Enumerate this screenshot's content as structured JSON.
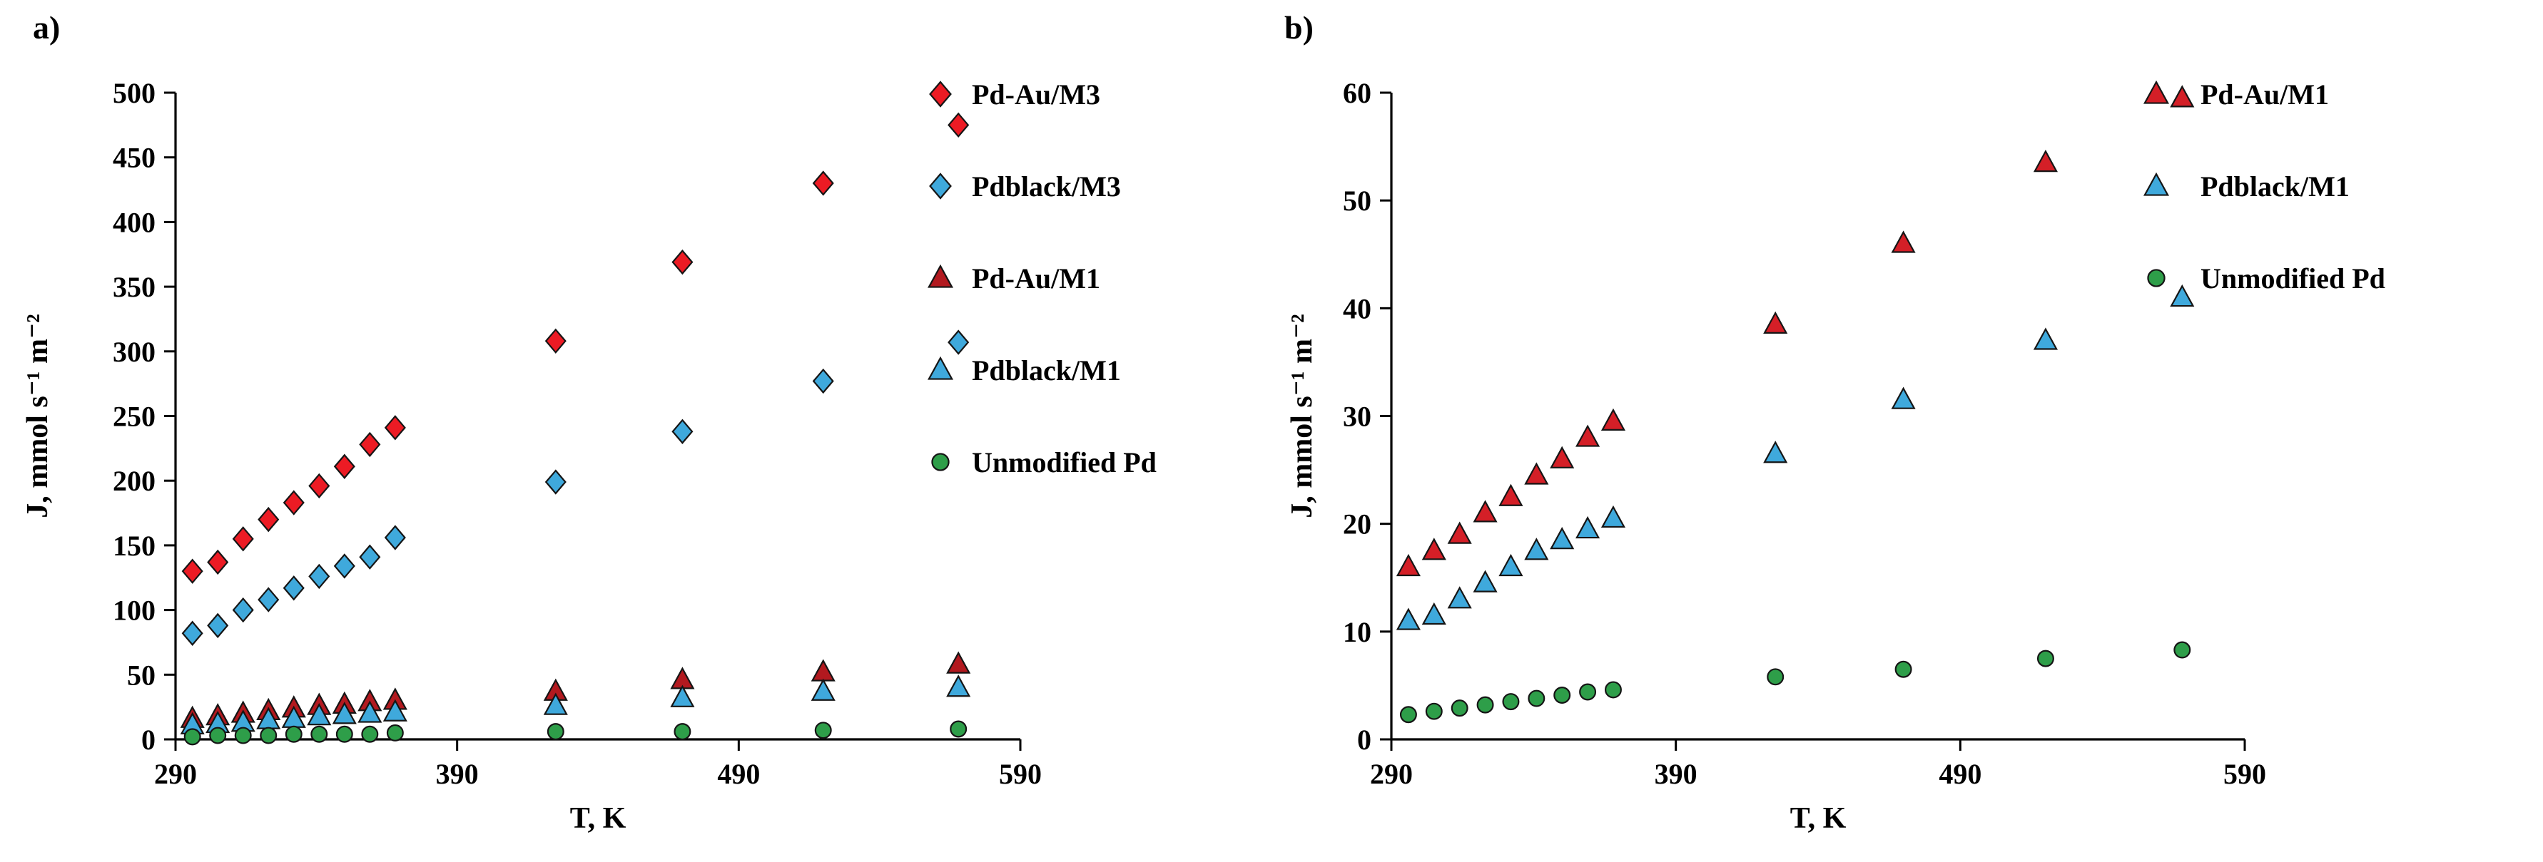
{
  "figure": {
    "background": "#ffffff"
  },
  "chart_data": [
    {
      "type": "scatter",
      "panel_label": "a)",
      "xlabel": "T, K",
      "ylabel": "J, mmol s⁻¹ m⁻²",
      "xlim": [
        290,
        590
      ],
      "ylim": [
        0,
        500
      ],
      "xticks": [
        290,
        390,
        490,
        590
      ],
      "yticks": [
        0,
        50,
        100,
        150,
        200,
        250,
        300,
        350,
        400,
        450,
        500
      ],
      "grid": false,
      "legend_position": "top-right",
      "series": [
        {
          "name": "Pd-Au/M3",
          "marker": "diamond",
          "color": "#ec1b24",
          "x": [
            296,
            305,
            314,
            323,
            332,
            341,
            350,
            359,
            368,
            425,
            470,
            520,
            568
          ],
          "y": [
            130,
            137,
            155,
            170,
            183,
            196,
            211,
            228,
            241,
            308,
            369,
            430,
            475
          ]
        },
        {
          "name": "Pdblack/M3",
          "marker": "diamond",
          "color": "#3fa9dc",
          "x": [
            296,
            305,
            314,
            323,
            332,
            341,
            350,
            359,
            368,
            425,
            470,
            520,
            568
          ],
          "y": [
            82,
            88,
            100,
            108,
            117,
            126,
            134,
            141,
            156,
            199,
            238,
            277,
            307
          ]
        },
        {
          "name": "Pd-Au/M1",
          "marker": "triangle",
          "color": "#b2191f",
          "x": [
            296,
            305,
            314,
            323,
            332,
            341,
            350,
            359,
            368,
            425,
            470,
            520,
            568
          ],
          "y": [
            16,
            18,
            20,
            22,
            24,
            26,
            27,
            29,
            30,
            37,
            46,
            52,
            58
          ]
        },
        {
          "name": "Pdblack/M1",
          "marker": "triangle",
          "color": "#3fa9dc",
          "x": [
            296,
            305,
            314,
            323,
            332,
            341,
            350,
            359,
            368,
            425,
            470,
            520,
            568
          ],
          "y": [
            11,
            12,
            13,
            15,
            16,
            18,
            19,
            20,
            21,
            26,
            32,
            37,
            40
          ]
        },
        {
          "name": "Unmodified Pd",
          "marker": "circle",
          "color": "#2e9e49",
          "x": [
            296,
            305,
            314,
            323,
            332,
            341,
            350,
            359,
            368,
            425,
            470,
            520,
            568
          ],
          "y": [
            2,
            3,
            3,
            3,
            4,
            4,
            4,
            4,
            5,
            6,
            6,
            7,
            8
          ]
        }
      ]
    },
    {
      "type": "scatter",
      "panel_label": "b)",
      "xlabel": "T, K",
      "ylabel": "J, mmol s⁻¹ m⁻²",
      "xlim": [
        290,
        590
      ],
      "ylim": [
        0,
        60
      ],
      "xticks": [
        290,
        390,
        490,
        590
      ],
      "yticks": [
        0,
        10,
        20,
        30,
        40,
        50,
        60
      ],
      "grid": false,
      "legend_position": "top-right",
      "series": [
        {
          "name": "Pd-Au/M1",
          "marker": "triangle",
          "color": "#d41f27",
          "x": [
            296,
            305,
            314,
            323,
            332,
            341,
            350,
            359,
            368,
            425,
            470,
            520,
            568
          ],
          "y": [
            16,
            17.5,
            19,
            21,
            22.5,
            24.5,
            26,
            28,
            29.5,
            38.5,
            46,
            53.5,
            59.5
          ]
        },
        {
          "name": "Pdblack/M1",
          "marker": "triangle",
          "color": "#3fa9dc",
          "x": [
            296,
            305,
            314,
            323,
            332,
            341,
            350,
            359,
            368,
            425,
            470,
            520,
            568
          ],
          "y": [
            11,
            11.5,
            13,
            14.5,
            16,
            17.5,
            18.5,
            19.5,
            20.5,
            26.5,
            31.5,
            37,
            41
          ]
        },
        {
          "name": "Unmodified Pd",
          "marker": "circle",
          "color": "#2e9e49",
          "x": [
            296,
            305,
            314,
            323,
            332,
            341,
            350,
            359,
            368,
            425,
            470,
            520,
            568
          ],
          "y": [
            2.3,
            2.6,
            2.9,
            3.2,
            3.5,
            3.8,
            4.1,
            4.4,
            4.6,
            5.8,
            6.5,
            7.5,
            8.3
          ]
        }
      ]
    }
  ]
}
